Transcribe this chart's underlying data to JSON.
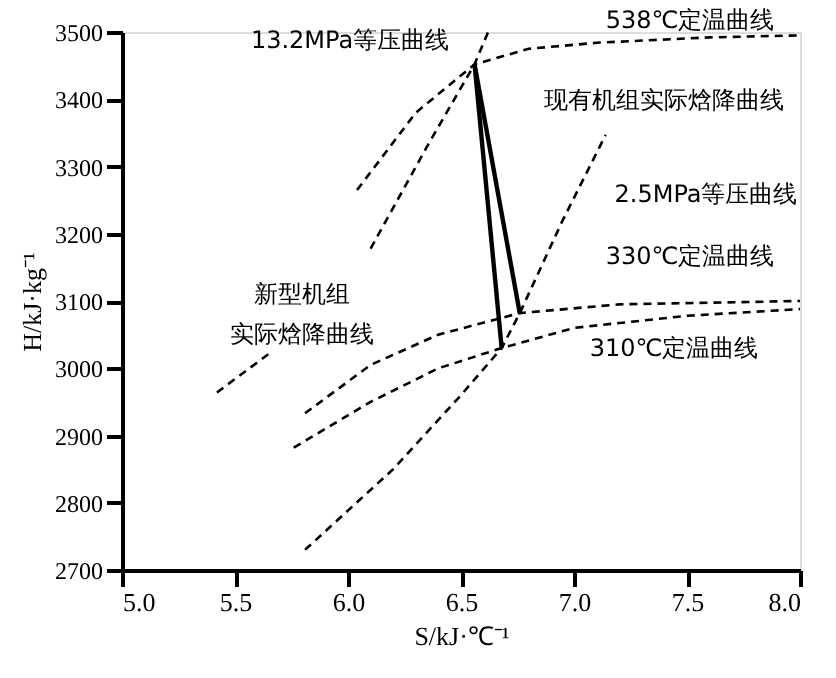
{
  "chart_data": {
    "type": "line",
    "xlabel": "S/kJ·℃⁻¹",
    "ylabel": "H/kJ·kg⁻¹",
    "xlim": [
      5.0,
      8.0
    ],
    "xticks": [
      {
        "value": 5,
        "label": "5.0"
      },
      5.5,
      {
        "value": 6,
        "label": "6.0"
      },
      6.5,
      {
        "value": 7,
        "label": "7.0"
      },
      7.5,
      {
        "value": 8,
        "label": "8.0"
      }
    ],
    "ylim": [
      2700,
      3500
    ],
    "yticks": [
      2700,
      2800,
      2900,
      3000,
      3100,
      3200,
      3300,
      3400,
      3500
    ],
    "grid": false,
    "marker": "none",
    "series": [
      {
        "color": "#000000",
        "line_style": "dashed",
        "x": [
          6.04,
          6.3,
          6.56,
          6.8,
          7.1,
          7.6,
          8.0
        ],
        "values": [
          3265,
          3380,
          3452,
          3475,
          3484,
          3492,
          3495
        ]
      },
      {
        "color": "#000000",
        "line_style": "dashed",
        "x": [
          6.1,
          6.35,
          6.56,
          6.62
        ],
        "values": [
          3178,
          3330,
          3452,
          3500
        ]
      },
      {
        "color": "#000000",
        "line_style": "dashed",
        "x": [
          5.42,
          5.66
        ],
        "values": [
          2964,
          3024
        ]
      },
      {
        "color": "#000000",
        "line_style": "dashed",
        "x": [
          5.81,
          6.1,
          6.4,
          6.76,
          7.2,
          8.0
        ],
        "values": [
          2933,
          3005,
          3050,
          3082,
          3095,
          3100
        ]
      },
      {
        "color": "#000000",
        "line_style": "dashed",
        "x": [
          5.76,
          6.1,
          6.4,
          6.68,
          7.0,
          7.5,
          8.0
        ],
        "values": [
          2882,
          2950,
          3000,
          3030,
          3060,
          3078,
          3088
        ]
      },
      {
        "color": "#000000",
        "line_style": "dashed",
        "x": [
          5.81,
          6.2,
          6.5,
          6.68,
          6.76,
          6.95,
          7.14
        ],
        "values": [
          2730,
          2850,
          2960,
          3030,
          3082,
          3220,
          3347
        ]
      },
      {
        "color": "#000000",
        "line_style": "solid",
        "x": [
          6.56,
          6.68
        ],
        "values": [
          3452,
          3030
        ]
      },
      {
        "color": "#000000",
        "line_style": "solid",
        "x": [
          6.56,
          6.76
        ],
        "values": [
          3452,
          3082
        ]
      }
    ],
    "annotations": [
      "13.2MPa等压曲线",
      "538℃定温曲线",
      "现有机组实际焓降曲线",
      "2.5MPa等压曲线",
      "330℃定温曲线",
      "310℃定温曲线",
      "新型机组实际焓降曲线"
    ]
  }
}
